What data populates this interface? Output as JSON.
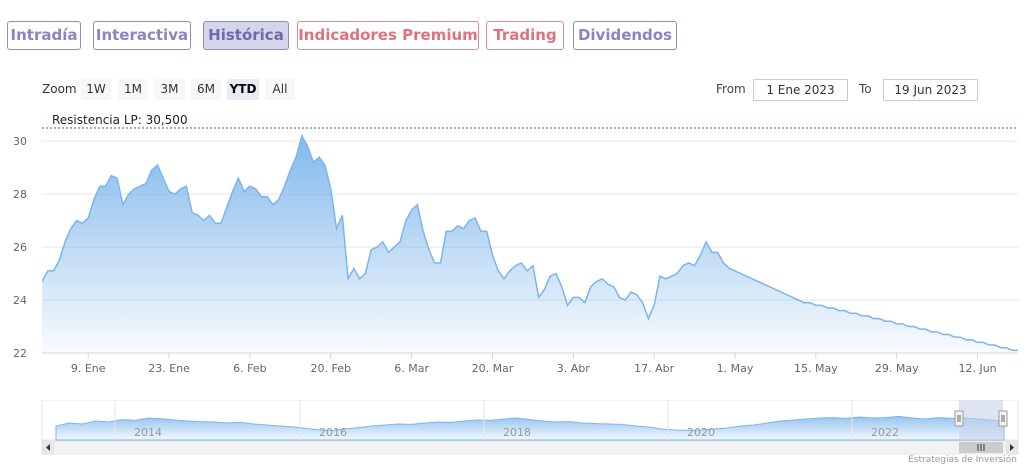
{
  "tabs": [
    {
      "label": "Intradía",
      "style": "normal"
    },
    {
      "label": "Interactiva",
      "style": "normal"
    },
    {
      "label": "Histórica",
      "style": "active"
    },
    {
      "label": "Indicadores Premium",
      "style": "premium"
    },
    {
      "label": "Trading",
      "style": "premium"
    },
    {
      "label": "Dividendos",
      "style": "normal"
    }
  ],
  "zoom": {
    "label": "Zoom",
    "buttons": [
      "1W",
      "1M",
      "3M",
      "6M",
      "YTD",
      "All"
    ],
    "selected": "YTD"
  },
  "range": {
    "from_label": "From",
    "from_value": "1 Ene 2023",
    "to_label": "To",
    "to_value": "19 Jun 2023"
  },
  "colors": {
    "tab_text": "#8a84c4",
    "premium_text": "#e0727e",
    "series_line": "#7cb5ec",
    "resistance_line": "#1e7a3c"
  },
  "chart_data": {
    "type": "area",
    "ylim": [
      22,
      30.8
    ],
    "yticks": [
      "22",
      "24",
      "26",
      "28",
      "30"
    ],
    "ytick_values": [
      22,
      24,
      26,
      28,
      30
    ],
    "xticks": [
      "9. Ene",
      "23. Ene",
      "6. Feb",
      "20. Feb",
      "6. Mar",
      "20. Mar",
      "3. Abr",
      "17. Abr",
      "1. May",
      "15. May",
      "29. May",
      "12. Jun"
    ],
    "xtick_days": [
      8,
      22,
      36,
      50,
      64,
      78,
      92,
      106,
      120,
      134,
      148,
      162
    ],
    "xrange_days": [
      0,
      169
    ],
    "grid": true,
    "resistance": {
      "label": "Resistencia LP: 30,500",
      "value": 30.5
    },
    "series": [
      {
        "days": [
          0,
          1,
          2,
          3,
          4,
          5,
          6,
          7,
          8,
          9,
          10,
          11,
          12,
          13,
          14,
          15,
          16,
          17,
          18,
          19,
          20,
          21,
          22,
          23,
          24,
          25,
          26,
          27,
          28,
          29,
          30,
          31,
          32,
          33,
          34,
          35,
          36,
          37,
          38,
          39,
          40,
          41,
          42,
          43,
          44,
          45,
          46,
          47,
          48,
          49,
          50,
          51,
          52,
          53,
          54,
          55,
          56,
          57,
          58,
          59,
          60,
          61,
          62,
          63,
          64,
          65,
          66,
          67,
          68,
          69,
          70,
          71,
          72,
          73,
          74,
          75,
          76,
          77,
          78,
          79,
          80,
          81,
          82,
          83,
          84,
          85,
          86,
          87,
          88,
          89,
          90,
          91,
          92,
          93,
          94,
          95,
          96,
          97,
          98,
          99,
          100,
          101,
          102,
          103,
          104,
          105,
          106,
          107,
          108,
          109,
          110,
          111,
          112,
          113,
          114,
          115,
          116,
          117,
          118,
          119,
          120,
          121,
          122,
          123,
          124,
          125,
          126,
          127,
          128,
          129,
          130,
          131,
          132,
          133,
          134,
          135,
          136,
          137,
          138,
          139,
          140,
          141,
          142,
          143,
          144,
          145,
          146,
          147,
          148,
          149,
          150,
          151,
          152,
          153,
          154,
          155,
          156,
          157,
          158,
          159,
          160,
          161,
          162,
          163,
          164,
          165,
          166,
          167,
          168,
          169
        ],
        "values": [
          24.7,
          25.1,
          25.1,
          25.5,
          26.2,
          26.7,
          27.0,
          26.9,
          27.1,
          27.8,
          28.3,
          28.3,
          28.7,
          28.6,
          27.6,
          28.0,
          28.2,
          28.3,
          28.4,
          28.9,
          29.1,
          28.6,
          28.1,
          28.0,
          28.2,
          28.3,
          27.3,
          27.2,
          27.0,
          27.2,
          26.9,
          26.9,
          27.5,
          28.1,
          28.6,
          28.1,
          28.3,
          28.2,
          27.9,
          27.9,
          27.6,
          27.8,
          28.3,
          28.9,
          29.4,
          30.2,
          29.8,
          29.2,
          29.4,
          29.1,
          28.2,
          26.7,
          27.2,
          24.8,
          25.2,
          24.8,
          25.0,
          25.9,
          26.0,
          26.2,
          25.8,
          26.0,
          26.2,
          27.0,
          27.4,
          27.6,
          26.6,
          25.9,
          25.4,
          25.4,
          26.6,
          26.6,
          26.8,
          26.7,
          27.0,
          27.1,
          26.6,
          26.6,
          25.7,
          25.1,
          24.8,
          25.1,
          25.3,
          25.4,
          25.1,
          25.3,
          24.1,
          24.4,
          24.9,
          25.0,
          24.5,
          23.8,
          24.1,
          24.1,
          23.9,
          24.5,
          24.7,
          24.8,
          24.6,
          24.5,
          24.1,
          24.0,
          24.3,
          24.2,
          23.9,
          23.3,
          23.8,
          24.9,
          24.8,
          24.9,
          25.0,
          25.3,
          25.4,
          25.3,
          25.7,
          26.2,
          25.8,
          25.8,
          25.4,
          25.2,
          25.1,
          25.0,
          24.9,
          24.8,
          24.7,
          24.6,
          24.5,
          24.4,
          24.3,
          24.2,
          24.1,
          24.0,
          23.9,
          23.9,
          23.8,
          23.8,
          23.7,
          23.7,
          23.6,
          23.6,
          23.5,
          23.5,
          23.4,
          23.4,
          23.3,
          23.3,
          23.2,
          23.2,
          23.1,
          23.1,
          23.0,
          23.0,
          22.9,
          22.9,
          22.8,
          22.8,
          22.7,
          22.7,
          22.6,
          22.6,
          22.5,
          22.5,
          22.4,
          22.4,
          22.3,
          22.3,
          22.2,
          22.2,
          22.1,
          22.1
        ]
      }
    ]
  },
  "navigator": {
    "year_labels": [
      "2014",
      "2016",
      "2018",
      "2020",
      "2022"
    ],
    "profile": [
      0.3,
      0.45,
      0.4,
      0.55,
      0.5,
      0.62,
      0.58,
      0.7,
      0.66,
      0.6,
      0.55,
      0.52,
      0.5,
      0.45,
      0.48,
      0.4,
      0.35,
      0.3,
      0.25,
      0.18,
      0.1,
      0.08,
      0.15,
      0.22,
      0.3,
      0.35,
      0.4,
      0.38,
      0.45,
      0.5,
      0.48,
      0.55,
      0.6,
      0.58,
      0.65,
      0.7,
      0.62,
      0.55,
      0.5,
      0.52,
      0.45,
      0.42,
      0.4,
      0.38,
      0.3,
      0.25,
      0.15,
      0.1,
      0.08,
      0.1,
      0.15,
      0.2,
      0.3,
      0.35,
      0.45,
      0.55,
      0.6,
      0.65,
      0.7,
      0.72,
      0.68,
      0.75,
      0.7,
      0.72,
      0.78,
      0.7,
      0.65,
      0.72,
      0.68,
      0.7,
      0.66,
      0.6,
      0.55
    ]
  },
  "credit": "Estrategias de Inversión"
}
